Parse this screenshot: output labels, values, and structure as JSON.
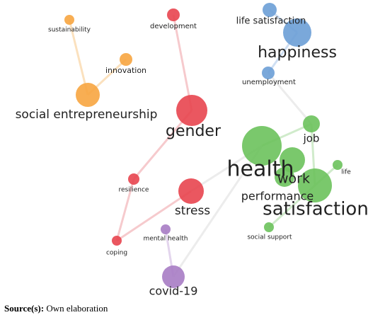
{
  "nodes": [
    {
      "label": "sustainability"
    },
    {
      "label": "innovation"
    },
    {
      "label": "social entrepreneurship"
    },
    {
      "label": "development"
    },
    {
      "label": "gender"
    },
    {
      "label": "resilience"
    },
    {
      "label": "stress"
    },
    {
      "label": "coping"
    },
    {
      "label": "mental health"
    },
    {
      "label": "covid-19"
    },
    {
      "label": "life satisfaction"
    },
    {
      "label": "happiness"
    },
    {
      "label": "unemployment"
    },
    {
      "label": "job"
    },
    {
      "label": "health"
    },
    {
      "label": "work"
    },
    {
      "label": "life"
    },
    {
      "label": "performance"
    },
    {
      "label": "satisfaction"
    },
    {
      "label": "social support"
    }
  ],
  "source": {
    "label": "Source(s):",
    "text": "Own elaboration"
  }
}
